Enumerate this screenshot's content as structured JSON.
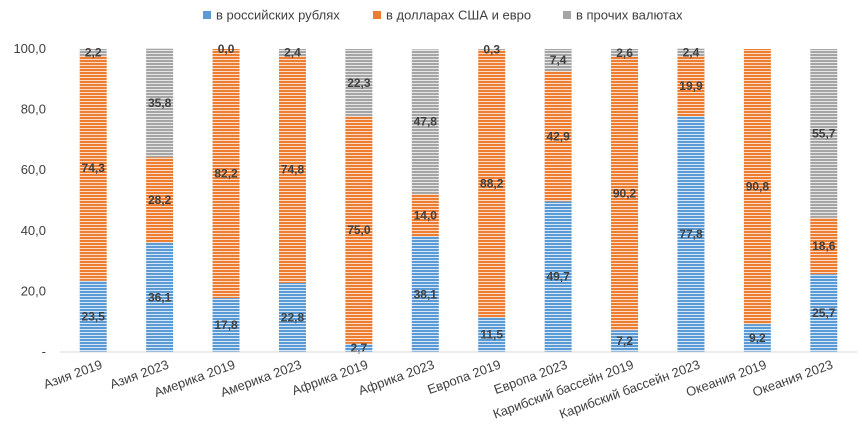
{
  "chart_data": {
    "type": "bar",
    "stacked": true,
    "categories": [
      "Азия 2019",
      "Азия 2023",
      "Америка 2019",
      "Америка 2023",
      "Африка 2019",
      "Африка 2023",
      "Европа 2019",
      "Европа 2023",
      "Карибский бассейн 2019",
      "Карибский бассейн 2023",
      "Океания 2019",
      "Океания 2023"
    ],
    "series": [
      {
        "name": "в российских рублях",
        "color": "#5b9bd5",
        "values": [
          23.5,
          36.1,
          17.8,
          22.8,
          2.7,
          38.1,
          11.5,
          49.7,
          7.2,
          77.8,
          9.2,
          25.7
        ],
        "labels": [
          "23,5",
          "36,1",
          "17,8",
          "22,8",
          "2,7",
          "38,1",
          "11,5",
          "49,7",
          "7,2",
          "77,8",
          "9,2",
          "25,7"
        ]
      },
      {
        "name": "в долларах США и евро",
        "color": "#ed7d31",
        "values": [
          74.3,
          28.2,
          82.2,
          74.8,
          75.0,
          14.0,
          88.2,
          42.9,
          90.2,
          19.9,
          90.8,
          18.6
        ],
        "labels": [
          "74,3",
          "28,2",
          "82,2",
          "74,8",
          "75,0",
          "14,0",
          "88,2",
          "42,9",
          "90,2",
          "19,9",
          "90,8",
          "18,6"
        ]
      },
      {
        "name": "в прочих валютах",
        "color": "#a5a5a5",
        "values": [
          2.2,
          35.8,
          0.0,
          2.4,
          22.3,
          47.8,
          0.3,
          7.4,
          2.6,
          2.4,
          0.0,
          55.7
        ],
        "labels": [
          "2,2",
          "35,8",
          "0,0",
          "2,4",
          "22,3",
          "47,8",
          "0,3",
          "7,4",
          "2,6",
          "2,4",
          "",
          "55,7"
        ]
      }
    ],
    "yticks": [
      0,
      20,
      40,
      60,
      80,
      100
    ],
    "ytick_labels": [
      "-",
      "20,0",
      "40,0",
      "60,0",
      "80,0",
      "100,0"
    ],
    "ylim": [
      0,
      100
    ],
    "legend_position": "top",
    "grid": false
  }
}
